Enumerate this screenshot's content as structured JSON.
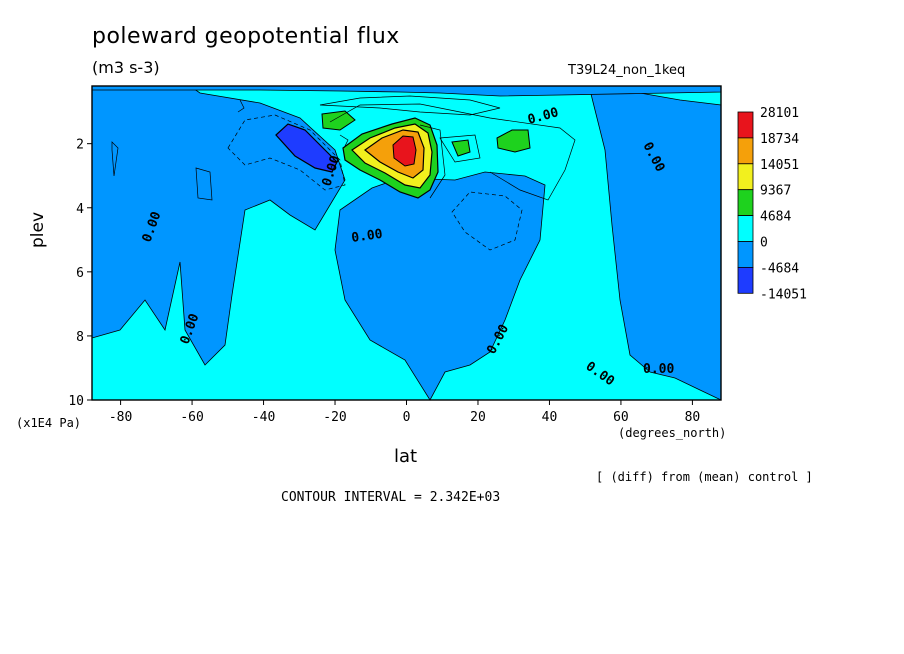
{
  "chart_data": {
    "type": "heatmap",
    "title": "poleward geopotential flux",
    "subtitle": "(m3 s-3)",
    "run_label": "T39L24_non_1keq",
    "xlabel": "lat",
    "x_units": "(degrees_north)",
    "ylabel": "plev",
    "y_units": "(x1E4 Pa)",
    "xlim": [
      -88,
      88
    ],
    "ylim": [
      10,
      0.2
    ],
    "x_ticks": [
      -80,
      -60,
      -40,
      -20,
      0,
      20,
      40,
      60,
      80
    ],
    "y_ticks": [
      2,
      4,
      6,
      8,
      10
    ],
    "contour_label": "0.00",
    "colorbar": {
      "labels": [
        "28101",
        "18734",
        "14051",
        "9367",
        "4684",
        "0",
        "-4684",
        "-14051"
      ],
      "colors": [
        "#e8141c",
        "#f5a00a",
        "#f2f01e",
        "#1ed21e",
        "#00ffff",
        "#0096ff",
        "#1e3cff"
      ]
    },
    "note": "[ (diff) from (mean) control ]",
    "contour_interval": "CONTOUR INTERVAL = 2.342E+03"
  }
}
